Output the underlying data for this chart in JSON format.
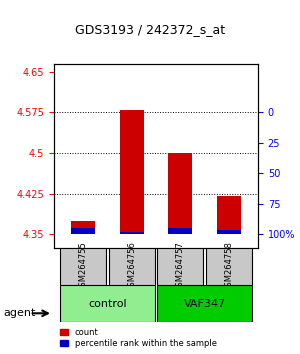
{
  "title": "GDS3193 / 242372_s_at",
  "samples": [
    "GSM264755",
    "GSM264756",
    "GSM264757",
    "GSM264758"
  ],
  "groups": [
    "control",
    "control",
    "VAF347",
    "VAF347"
  ],
  "group_labels": [
    "control",
    "VAF347"
  ],
  "group_colors": [
    "#90EE90",
    "#00CC00"
  ],
  "bar_base": 4.35,
  "red_values": [
    4.375,
    4.58,
    4.5,
    4.42
  ],
  "blue_values": [
    4.362,
    4.355,
    4.362,
    4.358
  ],
  "ylim_min": 4.325,
  "ylim_max": 4.665,
  "left_yticks": [
    4.35,
    4.425,
    4.5,
    4.575,
    4.65
  ],
  "right_yticks": [
    0,
    25,
    50,
    75,
    100
  ],
  "right_ytick_vals": [
    4.35,
    4.40625,
    4.4625,
    4.51875,
    4.575
  ],
  "grid_vals": [
    4.425,
    4.5,
    4.575
  ],
  "red_color": "#CC0000",
  "blue_color": "#0000CC",
  "legend_red": "count",
  "legend_blue": "percentile rank within the sample",
  "agent_label": "agent"
}
